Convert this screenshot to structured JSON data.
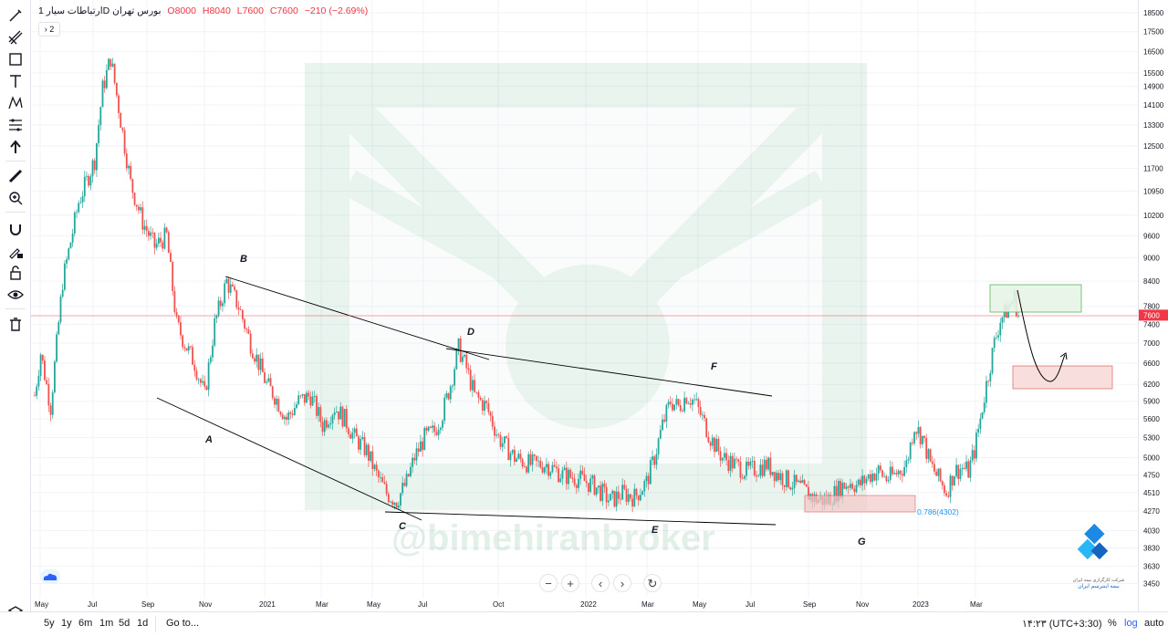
{
  "header": {
    "symbol": "ارتباطات سیار",
    "interval": "1D",
    "exchange": "بورس تهران",
    "open": "O8000",
    "high": "H8040",
    "low": "L7600",
    "close": "C7600",
    "change": "−210 (−2.69%)",
    "indicator_count": "2"
  },
  "toolbar": {
    "icons": [
      "cursor-icon",
      "trendline-icon",
      "rectangle-icon",
      "text-icon",
      "pattern-icon",
      "fib-icon",
      "arrow-icon",
      "ruler-icon",
      "zoom-icon",
      "magnet-icon",
      "lock-draw-icon",
      "lock-icon",
      "eye-icon",
      "trash-icon"
    ],
    "bottom_icon": "layers-icon"
  },
  "watermark_text": "@bimehiranbroker",
  "logo_text_fa": "شرکت کارگزاری بیمه ایران",
  "logo_text_fa2": "بیمه‌ اینترسم‌ ایران",
  "chart_data": {
    "type": "candlestick",
    "scale": "log",
    "ylim": [
      3400,
      18700
    ],
    "last_price": "7600",
    "last_price_color": "#f23645",
    "up_color": "#26a69a",
    "down_color": "#ef5350",
    "y_ticks": [
      "18500",
      "17500",
      "16500",
      "15500",
      "14900",
      "14100",
      "13300",
      "12500",
      "11700",
      "10950",
      "10200",
      "9600",
      "9000",
      "8400",
      "7800",
      "7400",
      "7000",
      "6600",
      "6200",
      "5900",
      "5600",
      "5300",
      "5000",
      "4750",
      "4510",
      "4270",
      "4030",
      "3830",
      "3630",
      "3450"
    ],
    "x_ticks": [
      "May",
      "Jul",
      "Sep",
      "Nov",
      "2021",
      "Mar",
      "May",
      "Jul",
      "Oct",
      "2022",
      "Mar",
      "May",
      "Jul",
      "Sep",
      "Nov",
      "2023",
      "Mar"
    ],
    "pattern_points": [
      "A",
      "B",
      "C",
      "D",
      "E",
      "F",
      "G"
    ],
    "fib_label": "0.786(4302)",
    "path": [
      [
        0,
        6000
      ],
      [
        3,
        6800
      ],
      [
        8,
        5800
      ],
      [
        14,
        8400
      ],
      [
        22,
        10600
      ],
      [
        30,
        12000
      ],
      [
        34,
        14800
      ],
      [
        38,
        16200
      ],
      [
        42,
        14000
      ],
      [
        48,
        11200
      ],
      [
        54,
        10000
      ],
      [
        60,
        9300
      ],
      [
        66,
        9600
      ],
      [
        71,
        7400
      ],
      [
        75,
        7000
      ],
      [
        80,
        6600
      ],
      [
        85,
        6000
      ],
      [
        90,
        7400
      ],
      [
        96,
        8400
      ],
      [
        102,
        7800
      ],
      [
        108,
        7000
      ],
      [
        112,
        6600
      ],
      [
        116,
        6200
      ],
      [
        120,
        6000
      ],
      [
        126,
        5600
      ],
      [
        132,
        5900
      ],
      [
        138,
        6000
      ],
      [
        144,
        5500
      ],
      [
        150,
        5800
      ],
      [
        155,
        5600
      ],
      [
        160,
        5300
      ],
      [
        166,
        5100
      ],
      [
        171,
        4750
      ],
      [
        176,
        4500
      ],
      [
        181,
        4400
      ],
      [
        186,
        4650
      ],
      [
        190,
        5000
      ],
      [
        195,
        5300
      ],
      [
        200,
        5400
      ],
      [
        204,
        5700
      ],
      [
        208,
        6200
      ],
      [
        212,
        6900
      ],
      [
        216,
        6500
      ],
      [
        220,
        6000
      ],
      [
        226,
        5800
      ],
      [
        232,
        5300
      ],
      [
        240,
        5000
      ],
      [
        248,
        4900
      ],
      [
        256,
        4900
      ],
      [
        264,
        4750
      ],
      [
        272,
        4700
      ],
      [
        280,
        4600
      ],
      [
        288,
        4400
      ],
      [
        294,
        4500
      ],
      [
        300,
        4450
      ],
      [
        306,
        4650
      ],
      [
        310,
        5000
      ],
      [
        314,
        5500
      ],
      [
        318,
        5900
      ],
      [
        322,
        5800
      ],
      [
        326,
        6000
      ],
      [
        330,
        5900
      ],
      [
        334,
        5600
      ],
      [
        338,
        5300
      ],
      [
        344,
        5000
      ],
      [
        350,
        4900
      ],
      [
        356,
        4800
      ],
      [
        362,
        4850
      ],
      [
        366,
        4900
      ],
      [
        372,
        4750
      ],
      [
        378,
        4650
      ],
      [
        384,
        4550
      ],
      [
        390,
        4430
      ],
      [
        396,
        4400
      ],
      [
        400,
        4500
      ],
      [
        404,
        4600
      ],
      [
        408,
        4650
      ],
      [
        412,
        4600
      ],
      [
        418,
        4750
      ],
      [
        422,
        4800
      ],
      [
        426,
        4700
      ],
      [
        430,
        4750
      ],
      [
        436,
        4900
      ],
      [
        440,
        5500
      ],
      [
        444,
        5300
      ],
      [
        448,
        4900
      ],
      [
        452,
        4700
      ],
      [
        456,
        4520
      ],
      [
        460,
        4800
      ],
      [
        464,
        4850
      ],
      [
        467,
        4800
      ],
      [
        470,
        5100
      ],
      [
        473,
        5600
      ],
      [
        476,
        6200
      ],
      [
        480,
        7000
      ],
      [
        483,
        7500
      ],
      [
        486,
        7700
      ],
      [
        490,
        8000
      ],
      [
        492,
        7600
      ]
    ]
  }
}
